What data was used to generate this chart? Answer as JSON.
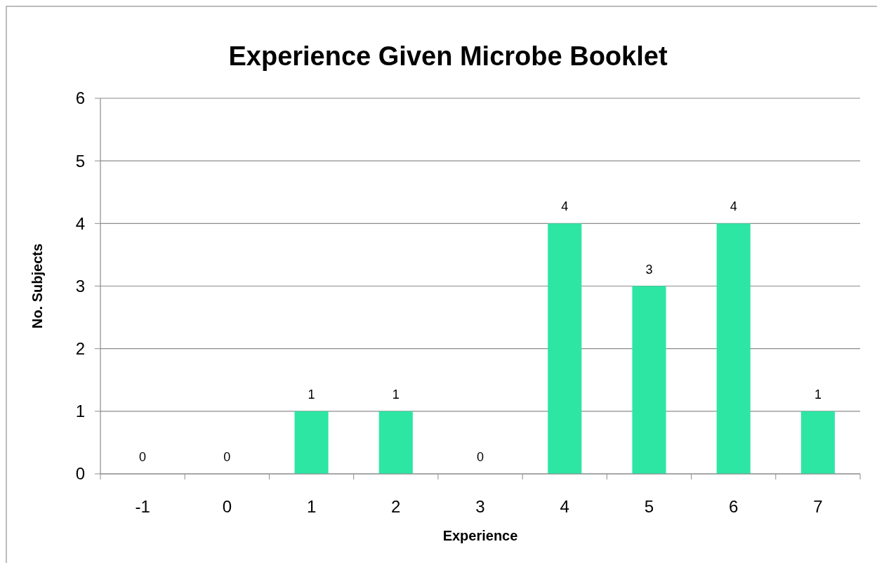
{
  "chart_data": {
    "type": "bar",
    "title": "Experience Given Microbe Booklet",
    "xlabel": "Experience",
    "ylabel": "No. Subjects",
    "categories": [
      "-1",
      "0",
      "1",
      "2",
      "3",
      "4",
      "5",
      "6",
      "7"
    ],
    "values": [
      0,
      0,
      1,
      1,
      0,
      4,
      3,
      4,
      1
    ],
    "color": "#2de6a4",
    "ylim": [
      0,
      6
    ],
    "yticks": [
      0,
      1,
      2,
      3,
      4,
      5,
      6
    ],
    "grid": "y",
    "data_labels": true
  }
}
